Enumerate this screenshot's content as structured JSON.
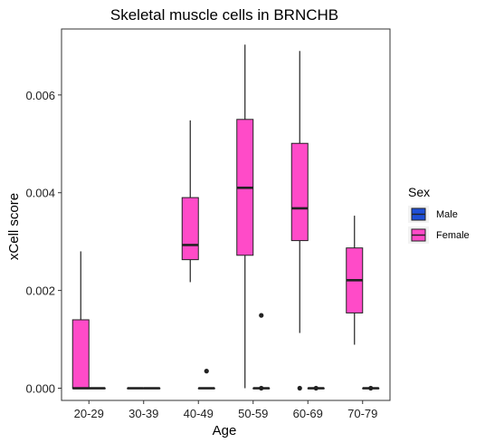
{
  "chart_data": {
    "type": "box",
    "title": "Skeletal muscle cells in BRNCHB",
    "xlabel": "Age",
    "ylabel": "xCell score",
    "ylim": [
      -0.00025,
      0.00735
    ],
    "yticks": [
      0.0,
      0.002,
      0.004,
      0.006
    ],
    "ytick_labels": [
      "0.000",
      "0.002",
      "0.004",
      "0.006"
    ],
    "categories": [
      "20-29",
      "30-39",
      "40-49",
      "50-59",
      "60-69",
      "70-79"
    ],
    "legend": {
      "title": "Sex",
      "position": "right",
      "entries": [
        {
          "name": "Male",
          "color": "#1f4fd6"
        },
        {
          "name": "Female",
          "color": "#ff4bc8"
        }
      ]
    },
    "series": [
      {
        "name": "Female",
        "color": "#ff4bc8",
        "boxes": [
          {
            "category": "20-29",
            "min": 0.0,
            "q1": 0.0,
            "median": 0.0,
            "q3": 0.0014,
            "max": 0.0028,
            "outliers": []
          },
          {
            "category": "30-39",
            "min": 0.0,
            "q1": 0.0,
            "median": 0.0,
            "q3": 0.0,
            "max": 0.0,
            "outliers": []
          },
          {
            "category": "40-49",
            "min": 0.00217,
            "q1": 0.00263,
            "median": 0.00293,
            "q3": 0.0039,
            "max": 0.00548,
            "outliers": []
          },
          {
            "category": "50-59",
            "min": 0.0,
            "q1": 0.00272,
            "median": 0.0041,
            "q3": 0.0055,
            "max": 0.00703,
            "outliers": []
          },
          {
            "category": "60-69",
            "min": 0.00113,
            "q1": 0.00302,
            "median": 0.00368,
            "q3": 0.00501,
            "max": 0.0069,
            "outliers": [
              0.0
            ]
          },
          {
            "category": "70-79",
            "min": 0.00089,
            "q1": 0.00154,
            "median": 0.00221,
            "q3": 0.00287,
            "max": 0.00353,
            "outliers": []
          }
        ]
      },
      {
        "name": "Male",
        "color": "#1f4fd6",
        "boxes": [
          {
            "category": "20-29",
            "min": 0.0,
            "q1": 0.0,
            "median": 0.0,
            "q3": 0.0,
            "max": 0.0,
            "outliers": []
          },
          {
            "category": "30-39",
            "min": 0.0,
            "q1": 0.0,
            "median": 0.0,
            "q3": 0.0,
            "max": 0.0,
            "outliers": []
          },
          {
            "category": "40-49",
            "min": 0.0,
            "q1": 0.0,
            "median": 0.0,
            "q3": 0.0,
            "max": 0.0,
            "outliers": [
              0.00035
            ]
          },
          {
            "category": "50-59",
            "min": 0.0,
            "q1": 0.0,
            "median": 0.0,
            "q3": 0.0,
            "max": 0.0,
            "outliers": [
              0.00149,
              0.0
            ]
          },
          {
            "category": "60-69",
            "min": 0.0,
            "q1": 0.0,
            "median": 0.0,
            "q3": 0.0,
            "max": 0.0,
            "outliers": [
              0.0
            ]
          },
          {
            "category": "70-79",
            "min": 0.0,
            "q1": 0.0,
            "median": 0.0,
            "q3": 0.0,
            "max": 0.0,
            "outliers": [
              0.0
            ]
          }
        ]
      }
    ]
  }
}
